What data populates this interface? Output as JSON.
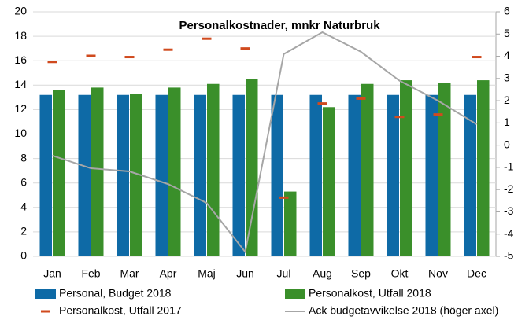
{
  "chart_data": {
    "type": "bar",
    "title": "Personalkostnader, mnkr Naturbruk",
    "categories": [
      "Jan",
      "Feb",
      "Mar",
      "Apr",
      "Maj",
      "Jun",
      "Jul",
      "Aug",
      "Sep",
      "Okt",
      "Nov",
      "Dec"
    ],
    "series": [
      {
        "name": "Personal, Budget 2018",
        "type": "bar",
        "color": "#0e6aa6",
        "values": [
          13.2,
          13.2,
          13.2,
          13.2,
          13.2,
          13.2,
          13.2,
          13.2,
          13.2,
          13.2,
          13.2,
          13.2
        ]
      },
      {
        "name": "Personalkost, Utfall 2018",
        "type": "bar",
        "color": "#3a8f2a",
        "values": [
          13.6,
          13.8,
          13.3,
          13.8,
          14.1,
          14.5,
          5.3,
          12.2,
          14.1,
          14.4,
          14.2,
          14.4
        ]
      },
      {
        "name": "Personalkost, Utfall 2017",
        "type": "marker",
        "color": "#d04a1e",
        "values": [
          15.9,
          16.4,
          16.3,
          16.9,
          17.8,
          17.0,
          4.8,
          12.5,
          12.9,
          11.4,
          11.6,
          16.3
        ]
      },
      {
        "name": "Ack budgetavvikelse 2018 (höger axel)",
        "type": "line",
        "axis": "y2",
        "color": "#a6a6a6",
        "values": [
          -0.47,
          -1.04,
          -1.18,
          -1.75,
          -2.6,
          -4.8,
          4.1,
          5.08,
          4.2,
          2.9,
          2.0,
          0.94
        ]
      }
    ],
    "ylim": [
      0,
      20
    ],
    "yticks": [
      0,
      2,
      4,
      6,
      8,
      10,
      12,
      14,
      16,
      18,
      20
    ],
    "y2lim": [
      -5,
      6
    ],
    "y2ticks": [
      -5,
      -4,
      -3,
      -2,
      -1,
      0,
      1,
      2,
      3,
      4,
      5,
      6
    ],
    "grid": true
  }
}
